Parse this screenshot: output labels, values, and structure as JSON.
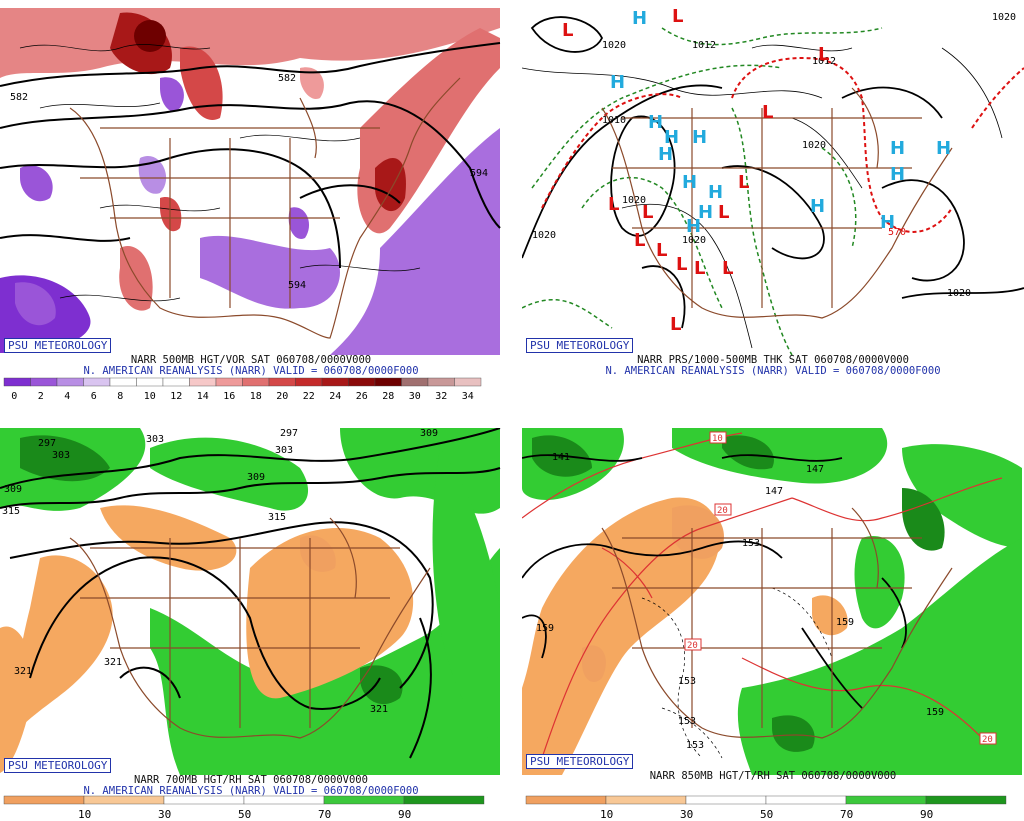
{
  "panels": [
    {
      "badge": "PSU METEOROLOGY",
      "title": "NARR 500MB HGT/VOR SAT 060708/0000V000",
      "subtitle": "N. AMERICAN REANALYSIS (NARR) VALID = 060708/0000F000",
      "contour_labels": [
        "582",
        "582",
        "594",
        "594"
      ],
      "colorbar": {
        "ticks": [
          "0",
          "2",
          "4",
          "6",
          "8",
          "10",
          "12",
          "14",
          "16",
          "18",
          "20",
          "22",
          "24",
          "26",
          "28",
          "30",
          "32",
          "34"
        ],
        "colors": [
          "#7e2fd0",
          "#9a55d8",
          "#b88ee4",
          "#d9c4f0",
          "#ffffff",
          "#ffffff",
          "#ffffff",
          "#f6c8c8",
          "#ee9a9a",
          "#e07070",
          "#d44848",
          "#c42a2a",
          "#a81818",
          "#8a0a0a",
          "#6e0000",
          "#a07070",
          "#c89898",
          "#e8c0c0"
        ]
      },
      "colors": {
        "land_lines": "#8b4a2b",
        "contours": "#000000"
      }
    },
    {
      "badge": "PSU METEOROLOGY",
      "title": "NARR PRS/1000-500MB THK SAT 060708/0000V000",
      "subtitle": "N. AMERICAN REANALYSIS (NARR) VALID = 060708/0000F000",
      "pressure_labels": [
        "1020",
        "1012",
        "1020",
        "1012",
        "1010",
        "1020",
        "1020",
        "1020",
        "1020",
        "1020"
      ],
      "thickness_label": "570",
      "high_labels": [
        "H",
        "H",
        "H",
        "H",
        "H",
        "H",
        "H",
        "H",
        "H",
        "H",
        "H",
        "H",
        "H",
        "H",
        "H"
      ],
      "low_labels": [
        "L",
        "L",
        "L",
        "L",
        "L",
        "L",
        "L",
        "L",
        "L",
        "L",
        "L",
        "L",
        "L",
        "L"
      ],
      "colors": {
        "high": "#22aadd",
        "low": "#dd1111",
        "thickness_cold": "#228822",
        "thickness_warm": "#dd1111"
      }
    },
    {
      "badge": "PSU METEOROLOGY",
      "title": "NARR 700MB HGT/RH SAT 060708/0000V000",
      "subtitle": "N. AMERICAN REANALYSIS (NARR) VALID = 060708/0000F000",
      "contour_labels": [
        "297",
        "303",
        "303",
        "309",
        "297",
        "303",
        "309",
        "309",
        "315",
        "315",
        "321",
        "321",
        "321"
      ],
      "colorbar": {
        "ticks": [
          "10",
          "30",
          "50",
          "70",
          "90"
        ],
        "colors": [
          "#f0a060",
          "#f8c896",
          "#ffffff",
          "#ffffff",
          "#3cc83c",
          "#1e961e"
        ]
      },
      "colors": {
        "dry": "#f5a860",
        "moist": "#33cc33",
        "very_moist": "#1a8a1a"
      }
    },
    {
      "badge": "PSU METEOROLOGY",
      "title": "NARR 850MB HGT/T/RH SAT 060708/0000V000",
      "subtitle": "",
      "contour_labels": [
        "141",
        "147",
        "147",
        "153",
        "159",
        "159",
        "153",
        "153",
        "153",
        "159"
      ],
      "temp_labels": [
        "10",
        "20",
        "20",
        "20"
      ],
      "colorbar": {
        "ticks": [
          "10",
          "30",
          "50",
          "70",
          "90"
        ],
        "colors": [
          "#f0a060",
          "#f8c896",
          "#ffffff",
          "#ffffff",
          "#3cc83c",
          "#1e961e"
        ]
      },
      "colors": {
        "dry": "#f5a860",
        "moist": "#33cc33",
        "temp_lines": "#dd3333"
      }
    }
  ]
}
